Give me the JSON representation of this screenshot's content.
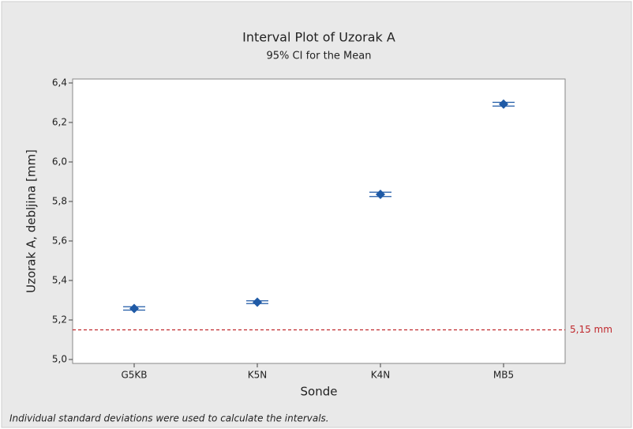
{
  "chart_data": {
    "type": "interval",
    "title": "Interval Plot of Uzorak A",
    "subtitle": "95% CI for the Mean",
    "x_label": "Sonde",
    "y_label": "Uzorak A, debljina [mm]",
    "footnote": "Individual standard deviations were used to calculate the intervals.",
    "categories": [
      "G5KB",
      "K5N",
      "K4N",
      "MB5"
    ],
    "values": [
      5.258,
      5.29,
      5.836,
      6.293
    ],
    "lower": [
      5.25,
      5.283,
      5.825,
      6.283
    ],
    "upper": [
      5.267,
      5.297,
      5.847,
      6.302
    ],
    "color": "#1f5aa6",
    "ylim": [
      4.98,
      6.42
    ],
    "yticks": [
      {
        "value": 5.0,
        "label": "5,0"
      },
      {
        "value": 5.2,
        "label": "5,2"
      },
      {
        "value": 5.4,
        "label": "5,4"
      },
      {
        "value": 5.6,
        "label": "5,6"
      },
      {
        "value": 5.8,
        "label": "5,8"
      },
      {
        "value": 6.0,
        "label": "6,0"
      },
      {
        "value": 6.2,
        "label": "6,2"
      },
      {
        "value": 6.4,
        "label": "6,4"
      }
    ],
    "reference_line": {
      "value": 5.15,
      "label": "5,15 mm",
      "color": "#c0282d"
    }
  }
}
